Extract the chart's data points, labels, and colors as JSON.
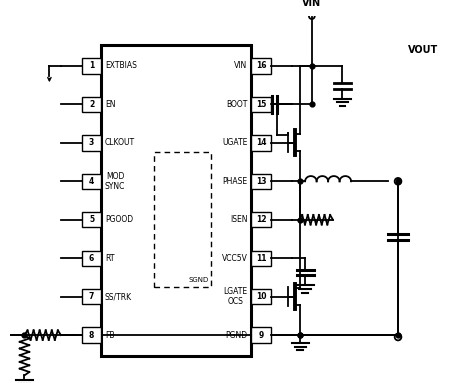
{
  "bg_color": "#ffffff",
  "line_color": "#000000",
  "left_pins": [
    {
      "num": 1,
      "label": "EXTBIAS"
    },
    {
      "num": 2,
      "label": "EN"
    },
    {
      "num": 3,
      "label": "CLKOUT"
    },
    {
      "num": 4,
      "label": "MOD\nSYNC"
    },
    {
      "num": 5,
      "label": "PGOOD"
    },
    {
      "num": 6,
      "label": "RT"
    },
    {
      "num": 7,
      "label": "SS/TRK"
    },
    {
      "num": 8,
      "label": "FB"
    }
  ],
  "right_pins": [
    {
      "num": 16,
      "label": "VIN"
    },
    {
      "num": 15,
      "label": "BOOT"
    },
    {
      "num": 14,
      "label": "UGATE"
    },
    {
      "num": 13,
      "label": "PHASE"
    },
    {
      "num": 12,
      "label": "ISEN"
    },
    {
      "num": 11,
      "label": "VCC5V"
    },
    {
      "num": 10,
      "label": "LGATE\nOCS"
    },
    {
      "num": 9,
      "label": "PGND"
    }
  ]
}
